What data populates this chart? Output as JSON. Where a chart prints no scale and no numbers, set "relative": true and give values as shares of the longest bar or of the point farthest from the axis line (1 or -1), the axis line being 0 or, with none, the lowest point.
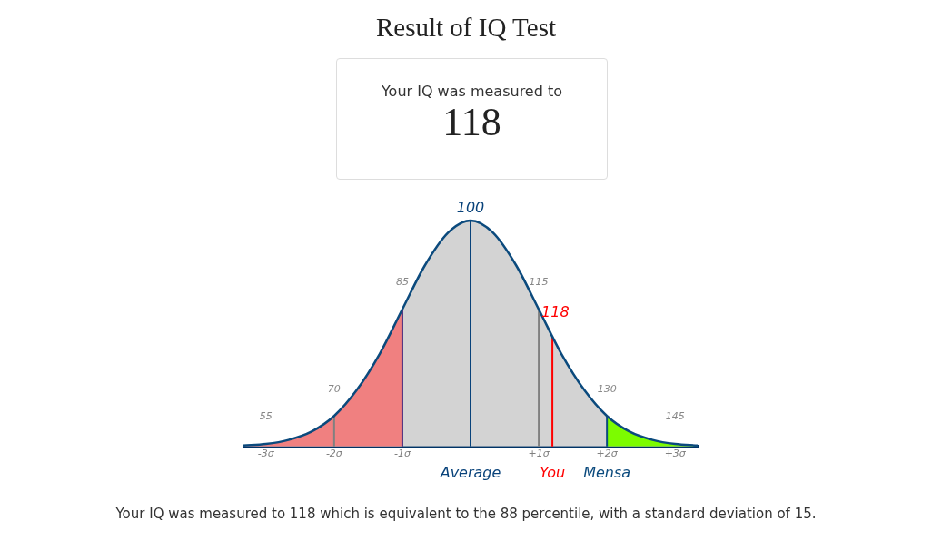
{
  "chart_data": {
    "type": "area",
    "title": "Result of IQ Test",
    "relative": true,
    "grid": false,
    "legend": false,
    "x": [
      -3.33,
      -3,
      -2.67,
      -2.33,
      -2,
      -1.67,
      -1.33,
      -1,
      -0.67,
      -0.33,
      0,
      0.33,
      0.67,
      1,
      1.33,
      1.67,
      2,
      2.33,
      2.67,
      3,
      3.33
    ],
    "series": [
      {
        "type": "area",
        "color": "#d3d3d3",
        "values": [
          0.004,
          0.011,
          0.029,
          0.066,
          0.135,
          0.249,
          0.411,
          0.607,
          0.801,
          0.946,
          1,
          0.946,
          0.801,
          0.607,
          0.411,
          0.249,
          0.135,
          0.066,
          0.029,
          0.011,
          0.004
        ]
      },
      {
        "type": "area",
        "color": "#f08080",
        "x": [
          -3.33,
          -3,
          -2.67,
          -2.33,
          -2,
          -1.67,
          -1.33,
          -1
        ],
        "values": [
          0.004,
          0.011,
          0.029,
          0.066,
          0.135,
          0.249,
          0.411,
          0.607
        ]
      },
      {
        "type": "area",
        "color": "#7cfc00",
        "x": [
          2,
          2.33,
          2.67,
          3,
          3.33
        ],
        "values": [
          0.135,
          0.066,
          0.029,
          0.011,
          0.004
        ]
      }
    ],
    "xlim": [
      -3.33,
      3.33
    ],
    "xticks": [
      {
        "value": -3,
        "label": "-3σ"
      },
      {
        "value": -2,
        "label": "-2σ"
      },
      {
        "value": -1,
        "label": "-1σ"
      },
      {
        "value": 1,
        "label": "+1σ"
      },
      {
        "value": 2,
        "label": "+2σ"
      },
      {
        "value": 3,
        "label": "+3σ"
      }
    ],
    "ref_lines": [
      {
        "axis": "x",
        "value": -2,
        "color": "#808080"
      },
      {
        "axis": "x",
        "value": -1,
        "color": "#4b2a7b"
      },
      {
        "axis": "x",
        "value": 0,
        "color": "#08427a",
        "label": "Average"
      },
      {
        "axis": "x",
        "value": 1,
        "color": "#808080"
      },
      {
        "axis": "x",
        "value": 1.2,
        "color": "#ff0000",
        "label": "You"
      },
      {
        "axis": "x",
        "value": 2,
        "color": "#0b4a7d",
        "label": "Mensa"
      }
    ],
    "annotations": [
      "Your IQ was measured to",
      "118",
      {
        "text": "55",
        "x": -3,
        "y": 0.011
      },
      {
        "text": "70",
        "x": -2,
        "y": 0.135
      },
      {
        "text": "85",
        "x": -1,
        "y": 0.607
      },
      {
        "text": "100",
        "x": 0,
        "y": 1
      },
      {
        "text": "115",
        "x": 1,
        "y": 0.607
      },
      {
        "text": "118",
        "x": 1.2,
        "y": 0.487
      },
      {
        "text": "130",
        "x": 2,
        "y": 0.135
      },
      {
        "text": "145",
        "x": 3,
        "y": 0.011
      },
      "Your IQ was measured to 118 which is equivalent to the 88 percentile, with a standard deviation of 15."
    ]
  }
}
